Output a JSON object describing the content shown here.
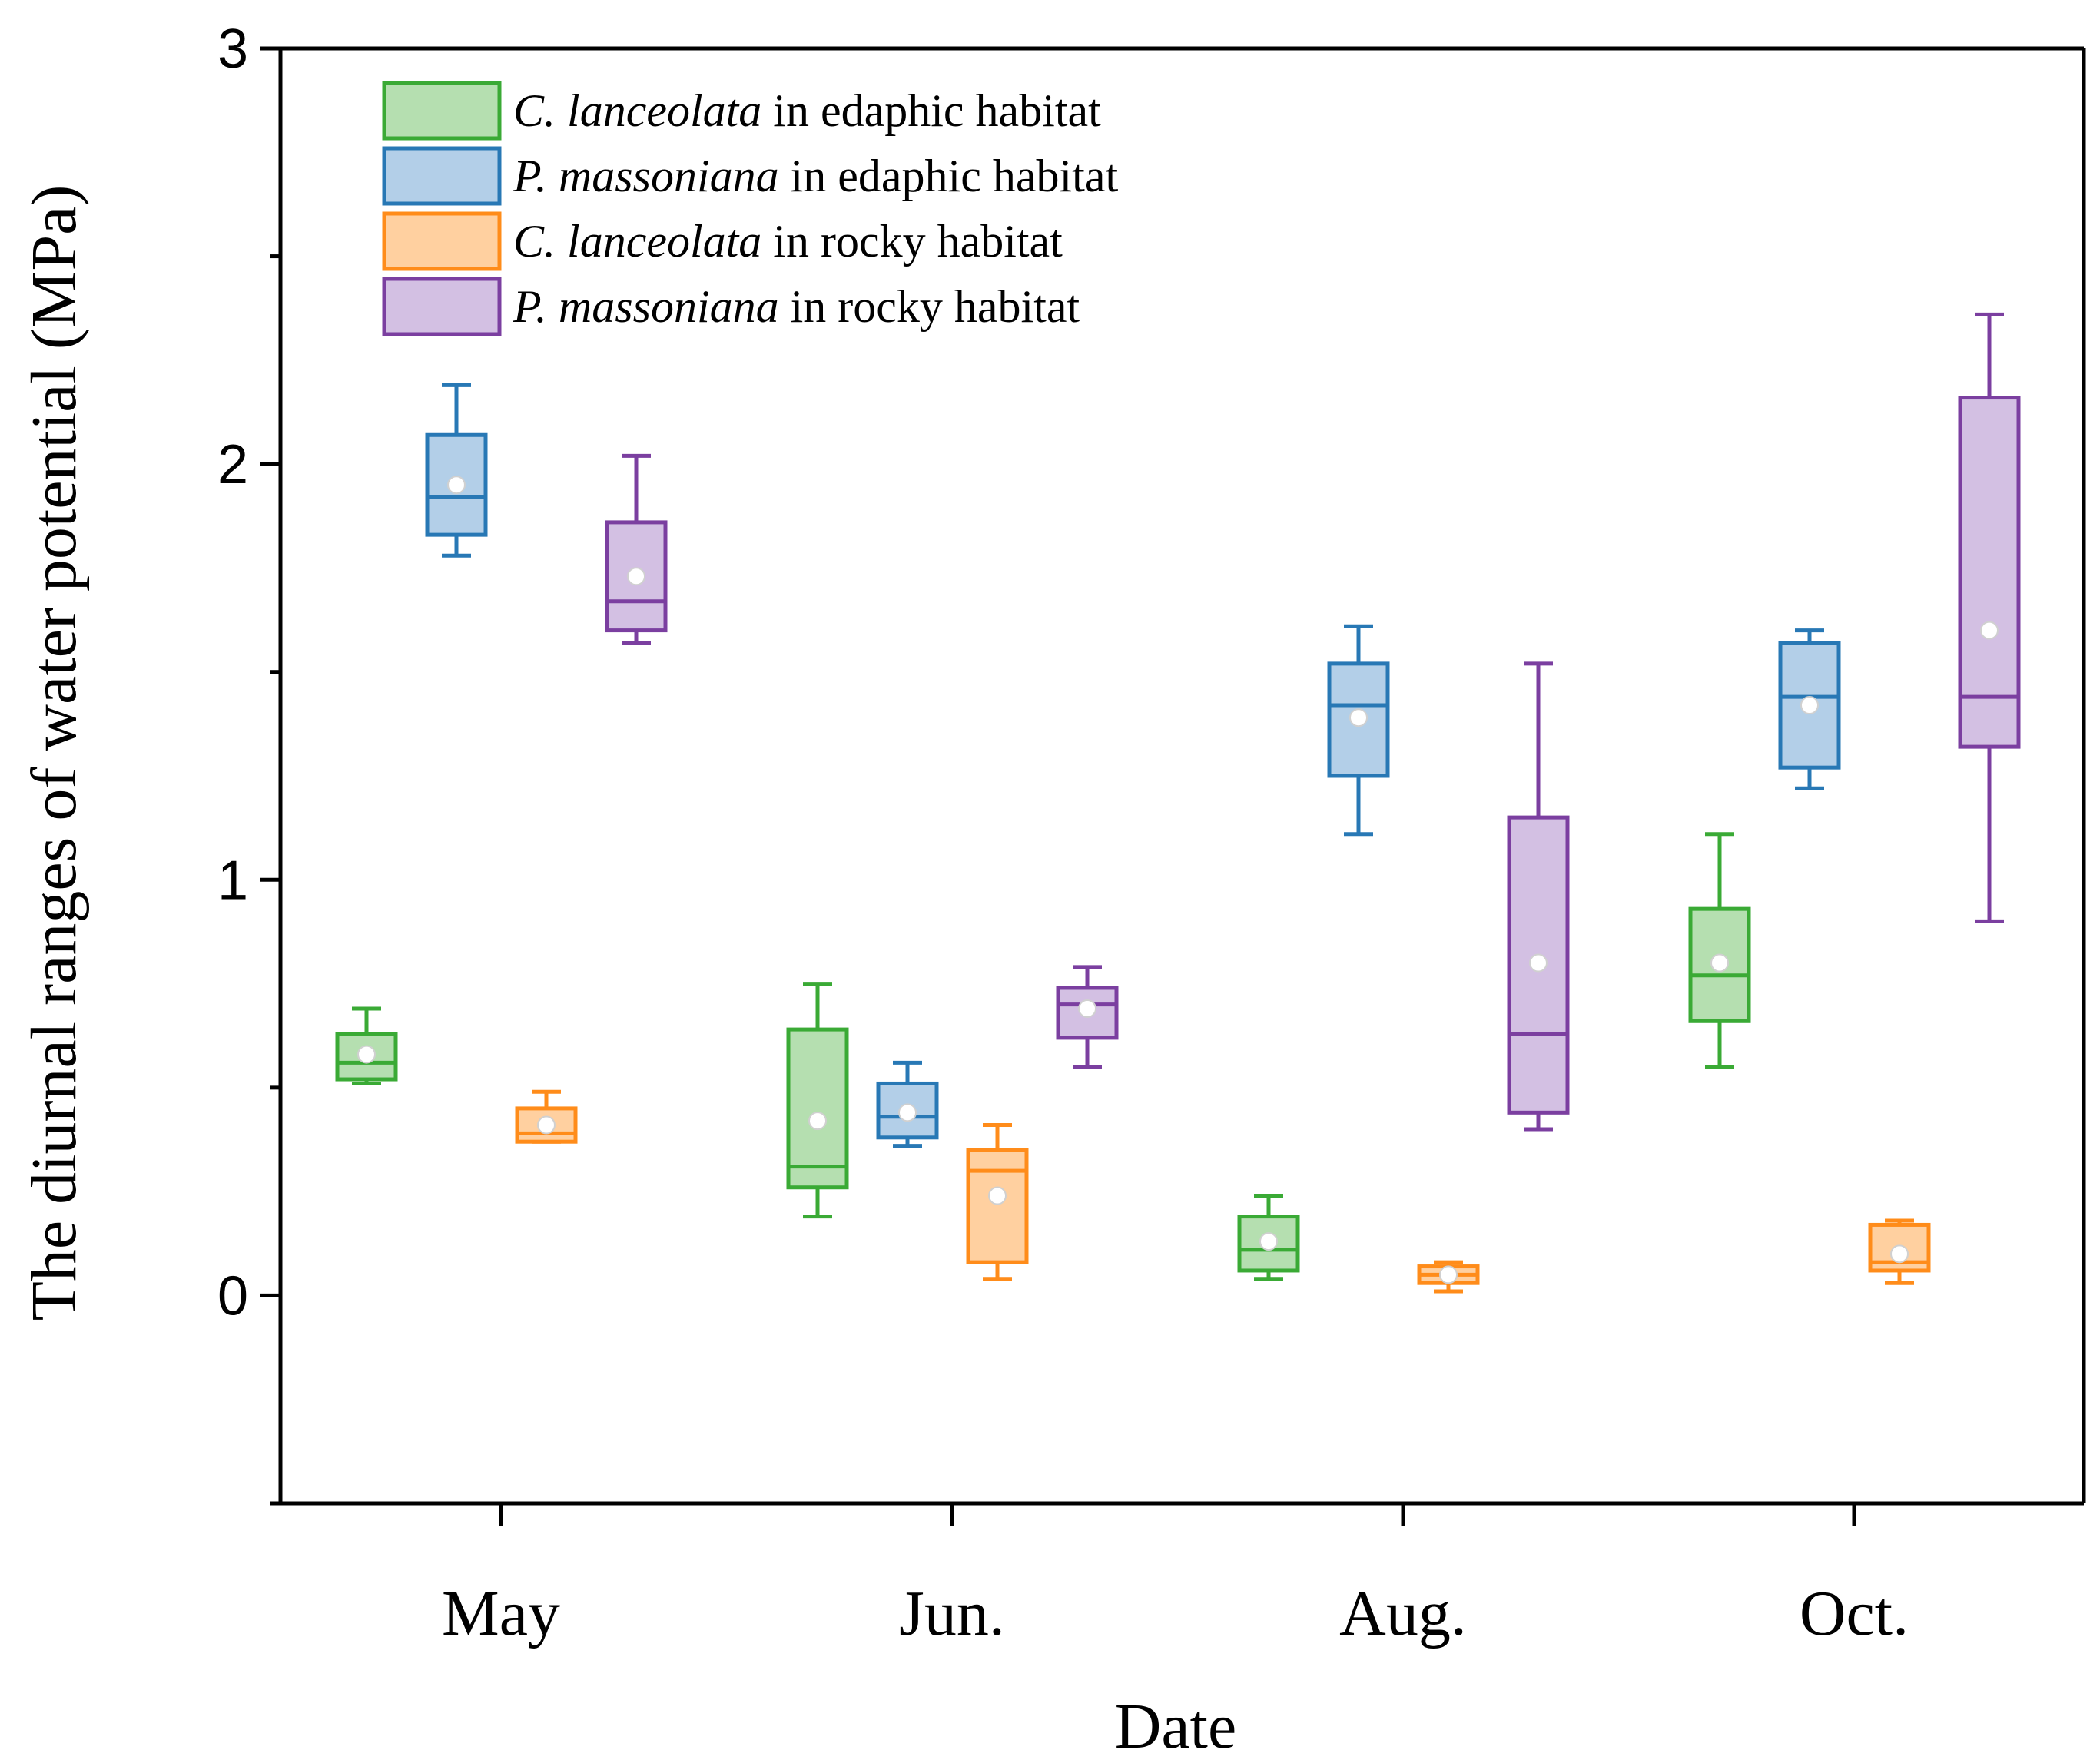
{
  "chart_data": {
    "type": "box",
    "xlabel": "Date",
    "ylabel": "The  diurnal ranges of water potential (MPa)",
    "ylim": [
      -0.5,
      3
    ],
    "yticks": [
      0,
      1,
      2,
      3
    ],
    "categories": [
      "May",
      "Jun.",
      "Aug.",
      "Oct."
    ],
    "legend_position": "top-left",
    "series": [
      {
        "name_italic": "C. lanceolata",
        "name_rest": " in edaphic habitat",
        "color": "#3aaa35",
        "fill": "#b5dfb0",
        "boxes": [
          {
            "min": 0.51,
            "q1": 0.52,
            "median": 0.56,
            "q3": 0.63,
            "max": 0.69,
            "mean": 0.58
          },
          {
            "min": 0.19,
            "q1": 0.26,
            "median": 0.31,
            "q3": 0.64,
            "max": 0.75,
            "mean": 0.42
          },
          {
            "min": 0.04,
            "q1": 0.06,
            "median": 0.11,
            "q3": 0.19,
            "max": 0.24,
            "mean": 0.13
          },
          {
            "min": 0.55,
            "q1": 0.66,
            "median": 0.77,
            "q3": 0.93,
            "max": 1.11,
            "mean": 0.8
          }
        ]
      },
      {
        "name_italic": "P. massoniana",
        "name_rest": " in edaphic habitat",
        "color": "#2878b5",
        "fill": "#b3cfe8",
        "boxes": [
          {
            "min": 1.78,
            "q1": 1.83,
            "median": 1.92,
            "q3": 2.07,
            "max": 2.19,
            "mean": 1.95
          },
          {
            "min": 0.36,
            "q1": 0.38,
            "median": 0.43,
            "q3": 0.51,
            "max": 0.56,
            "mean": 0.44
          },
          {
            "min": 1.11,
            "q1": 1.25,
            "median": 1.42,
            "q3": 1.52,
            "max": 1.61,
            "mean": 1.39
          },
          {
            "min": 1.22,
            "q1": 1.27,
            "median": 1.44,
            "q3": 1.57,
            "max": 1.6,
            "mean": 1.42
          }
        ]
      },
      {
        "name_italic": "C. lanceolata",
        "name_rest": " in rocky habitat",
        "color": "#ff8c1a",
        "fill": "#ffd0a0",
        "boxes": [
          {
            "min": 0.37,
            "q1": 0.37,
            "median": 0.39,
            "q3": 0.45,
            "max": 0.49,
            "mean": 0.41
          },
          {
            "min": 0.04,
            "q1": 0.08,
            "median": 0.3,
            "q3": 0.35,
            "max": 0.41,
            "mean": 0.24
          },
          {
            "min": 0.01,
            "q1": 0.03,
            "median": 0.05,
            "q3": 0.07,
            "max": 0.08,
            "mean": 0.05
          },
          {
            "min": 0.03,
            "q1": 0.06,
            "median": 0.08,
            "q3": 0.17,
            "max": 0.18,
            "mean": 0.1
          }
        ]
      },
      {
        "name_italic": "P. massoniana",
        "name_rest": " in rocky habitat",
        "color": "#7b3fa0",
        "fill": "#d3c0e3",
        "boxes": [
          {
            "min": 1.57,
            "q1": 1.6,
            "median": 1.67,
            "q3": 1.86,
            "max": 2.02,
            "mean": 1.73
          },
          {
            "min": 0.55,
            "q1": 0.62,
            "median": 0.7,
            "q3": 0.74,
            "max": 0.79,
            "mean": 0.69
          },
          {
            "min": 0.4,
            "q1": 0.44,
            "median": 0.63,
            "q3": 1.15,
            "max": 1.52,
            "mean": 0.8
          },
          {
            "min": 0.9,
            "q1": 1.32,
            "median": 1.44,
            "q3": 2.16,
            "max": 2.36,
            "mean": 1.6
          }
        ]
      }
    ]
  }
}
